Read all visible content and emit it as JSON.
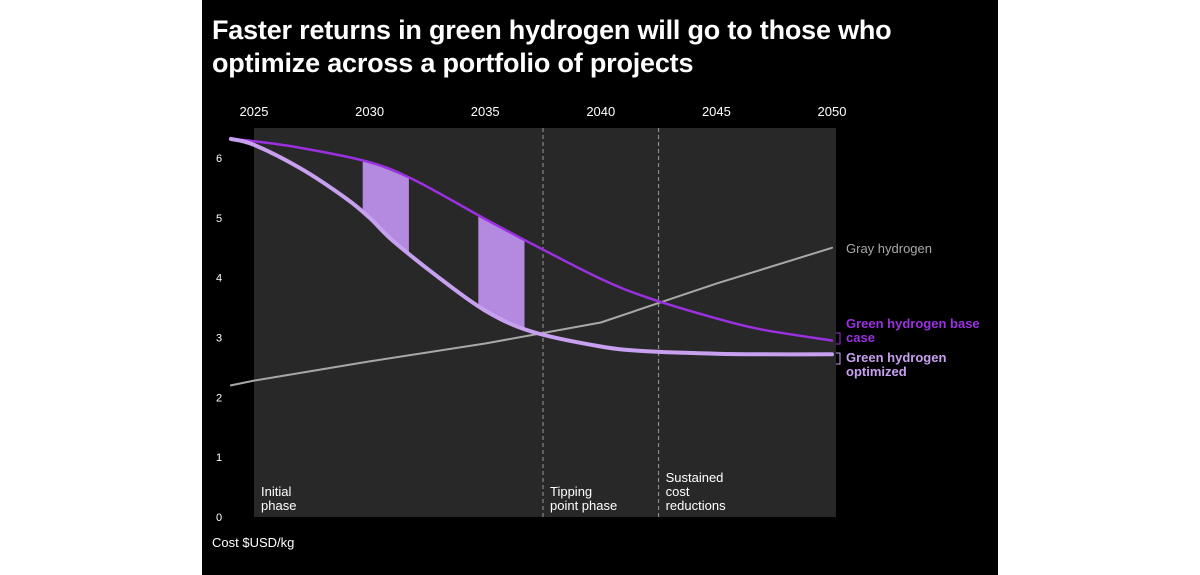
{
  "title": "Faster returns in green hydrogen will go to those who optimize across a portfolio of projects",
  "chart_data": {
    "type": "line",
    "title": "Faster returns in green hydrogen will go to those who optimize across a portfolio of projects",
    "xlabel": "",
    "ylabel": "Cost $USD/kg",
    "xlim": [
      2025,
      2050
    ],
    "ylim": [
      0,
      6.5
    ],
    "x_axis_position": "top",
    "x_ticks": [
      2025,
      2030,
      2035,
      2040,
      2045,
      2050
    ],
    "y_ticks": [
      0,
      1,
      2,
      3,
      4,
      5,
      6
    ],
    "grid": "dashed vertical phase dividers",
    "series": [
      {
        "name": "Gray hydrogen",
        "color": "#a8a8a8",
        "x": [
          2024,
          2025,
          2030,
          2035,
          2040,
          2045,
          2050
        ],
        "y": [
          2.2,
          2.28,
          2.6,
          2.9,
          3.25,
          3.9,
          4.5
        ]
      },
      {
        "name": "Green hydrogen base case",
        "color": "#9b30e0",
        "x": [
          2024,
          2025,
          2027,
          2030,
          2032,
          2035,
          2037,
          2040,
          2042,
          2045,
          2047,
          2050
        ],
        "y": [
          6.32,
          6.28,
          6.17,
          5.93,
          5.62,
          4.98,
          4.57,
          3.98,
          3.67,
          3.32,
          3.13,
          2.95
        ]
      },
      {
        "name": "Green hydrogen optimized",
        "color": "#c8a0f0",
        "x": [
          2024,
          2025,
          2027,
          2029,
          2030,
          2031,
          2033,
          2035,
          2037,
          2040,
          2042,
          2045,
          2047,
          2050
        ],
        "y": [
          6.32,
          6.22,
          5.83,
          5.32,
          5.0,
          4.62,
          4.0,
          3.45,
          3.1,
          2.85,
          2.77,
          2.73,
          2.72,
          2.72
        ]
      }
    ],
    "shaded_gaps": [
      {
        "x0": 2029.7,
        "x1": 2031.7,
        "between": [
          "Green hydrogen base case",
          "Green hydrogen optimized"
        ],
        "color": "#b48ae0"
      },
      {
        "x0": 2034.7,
        "x1": 2036.7,
        "between": [
          "Green hydrogen base case",
          "Green hydrogen optimized"
        ],
        "color": "#b48ae0"
      }
    ],
    "phases": [
      {
        "label": [
          "Initial",
          "phase"
        ],
        "x_start": 2025
      },
      {
        "label": [
          "Tipping",
          "point phase"
        ],
        "x_start": 2037.5
      },
      {
        "label": [
          "Sustained",
          "cost",
          "reductions"
        ],
        "x_start": 2042.5
      }
    ]
  }
}
